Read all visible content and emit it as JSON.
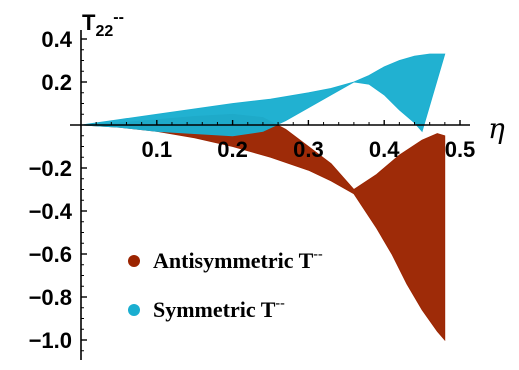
{
  "chart_data": {
    "type": "area",
    "xlabel": "η",
    "ylabel": "T",
    "ylabel_sub": "22",
    "ylabel_sup": "--",
    "xlim": [
      0,
      0.5
    ],
    "ylim": [
      -1.1,
      0.42
    ],
    "x_ticks": [
      0.1,
      0.2,
      0.3,
      0.4,
      0.5
    ],
    "x_tick_labels": [
      "0.1",
      "0.2",
      "0.3",
      "0.4",
      "0.5"
    ],
    "y_ticks": [
      0.4,
      0.2,
      -0.2,
      -0.4,
      -0.6,
      -0.8,
      -1.0
    ],
    "y_tick_labels": [
      "0.4",
      "0.2",
      "−0.2",
      "−0.4",
      "−0.6",
      "−0.8",
      "−1.0"
    ],
    "grid": false,
    "legend_position": "bottom-left",
    "series": [
      {
        "name": "Antisymmetric T",
        "name_sup": "--",
        "color": "#9b2400",
        "upper": {
          "x": [
            0.0,
            0.05,
            0.1,
            0.15,
            0.2,
            0.24,
            0.27,
            0.3,
            0.33,
            0.36,
            0.39,
            0.42,
            0.45,
            0.47,
            0.48
          ],
          "y": [
            0.0,
            0.01,
            0.025,
            0.04,
            0.05,
            0.035,
            -0.02,
            -0.1,
            -0.18,
            -0.3,
            -0.23,
            -0.14,
            -0.07,
            -0.04,
            -0.05
          ]
        },
        "lower": {
          "x": [
            0.0,
            0.05,
            0.1,
            0.15,
            0.2,
            0.25,
            0.3,
            0.33,
            0.36,
            0.39,
            0.41,
            0.43,
            0.45,
            0.47,
            0.48
          ],
          "y": [
            0.0,
            -0.01,
            -0.03,
            -0.06,
            -0.1,
            -0.15,
            -0.21,
            -0.26,
            -0.32,
            -0.48,
            -0.6,
            -0.74,
            -0.86,
            -0.96,
            -1.0
          ]
        }
      },
      {
        "name": "Symmetric T",
        "name_sup": "--",
        "color": "#1aaed0",
        "upper": {
          "x": [
            0.0,
            0.05,
            0.1,
            0.15,
            0.2,
            0.25,
            0.3,
            0.33,
            0.36,
            0.38,
            0.4,
            0.42,
            0.44,
            0.46,
            0.48
          ],
          "y": [
            0.0,
            0.025,
            0.05,
            0.075,
            0.1,
            0.12,
            0.15,
            0.17,
            0.2,
            0.23,
            0.27,
            0.3,
            0.32,
            0.33,
            0.33
          ]
        },
        "lower": {
          "x": [
            0.0,
            0.05,
            0.1,
            0.15,
            0.2,
            0.24,
            0.27,
            0.3,
            0.33,
            0.36,
            0.38,
            0.4,
            0.42,
            0.44,
            0.45
          ],
          "y": [
            0.0,
            -0.01,
            -0.03,
            -0.04,
            -0.05,
            -0.03,
            0.02,
            0.08,
            0.14,
            0.2,
            0.19,
            0.14,
            0.07,
            0.01,
            -0.03
          ]
        }
      }
    ]
  }
}
